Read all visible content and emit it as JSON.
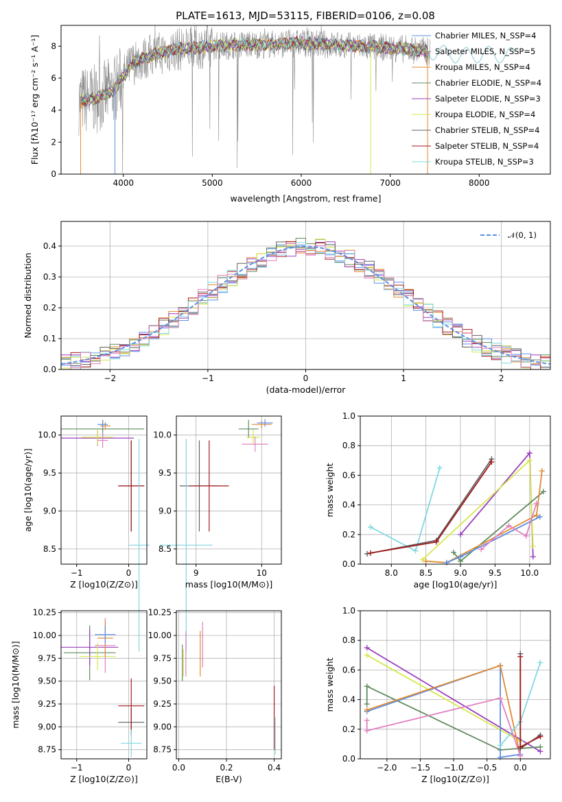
{
  "figure_title": "PLATE=1613, MJD=53115, FIBERID=0106, z=0.08",
  "colors": {
    "chabrier_miles": "#5b8ee6",
    "salpeter_miles": "#7f7f7f",
    "kroupa_miles": "#e08a2e",
    "chabrier_elodie": "#5f8a5f",
    "salpeter_elodie": "#9a3cbc",
    "kroupa_elodie": "#d5e84a",
    "chabrier_stelib": "#606060",
    "salpeter_stelib": "#a31a1a",
    "kroupa_stelib": "#7fd8e0",
    "pink": "#e07fbf"
  },
  "chart_data": [
    {
      "id": "spectrum",
      "type": "line",
      "xlabel": "wavelength [Angstrom, rest frame]",
      "ylabel": "Flux [fλ10⁻¹⁷ erg cm⁻² s⁻¹ A⁻¹]",
      "xlim": [
        3300,
        8800
      ],
      "ylim": [
        0,
        9.3
      ],
      "xticks": [
        "4000",
        "5000",
        "6000",
        "7000",
        "8000"
      ],
      "yticks": [
        "0",
        "2",
        "4",
        "6",
        "8"
      ],
      "legend_position": "upper-right",
      "legend": [
        {
          "name": "Chabrier MILES, N_SSP=4",
          "color": "#5b8ee6"
        },
        {
          "name": "Salpeter MILES, N_SSP=5",
          "color": "#7f7f7f"
        },
        {
          "name": "Kroupa MILES, N_SSP=4",
          "color": "#e08a2e"
        },
        {
          "name": "Chabrier ELODIE, N_SSP=4",
          "color": "#5f8a5f"
        },
        {
          "name": "Salpeter ELODIE, N_SSP=3",
          "color": "#9a3cbc"
        },
        {
          "name": "Kroupa ELODIE, N_SSP=4",
          "color": "#d5e84a"
        },
        {
          "name": "Chabrier STELIB, N_SSP=4",
          "color": "#606060"
        },
        {
          "name": "Salpeter STELIB, N_SSP=4",
          "color": "#a31a1a"
        },
        {
          "name": "Kroupa STELIB, N_SSP=3",
          "color": "#7fd8e0"
        }
      ],
      "continuum_x": [
        3500,
        3700,
        3900,
        4100,
        4300,
        4600,
        5000,
        5300,
        5600,
        6000,
        6300,
        6600,
        7000,
        7400,
        7800,
        8100,
        8400
      ],
      "continuum_y": [
        4.6,
        4.7,
        5.3,
        6.9,
        7.4,
        7.8,
        8.0,
        8.1,
        8.1,
        8.2,
        8.1,
        8.0,
        7.9,
        7.7,
        7.4,
        7.5,
        7.4
      ]
    },
    {
      "id": "residuals",
      "type": "histogram",
      "xlabel": "(data-model)/error",
      "ylabel": "Normed distribution",
      "xlim": [
        -2.5,
        2.5
      ],
      "ylim": [
        0,
        0.48
      ],
      "xticks": [
        "−2",
        "−1",
        "0",
        "1",
        "2"
      ],
      "yticks": [
        "0.0",
        "0.1",
        "0.2",
        "0.3",
        "0.4"
      ],
      "legend": [
        {
          "name": "𝒩(0, 1)",
          "color": "#5b8ee6"
        }
      ],
      "bin_width": 0.1
    },
    {
      "id": "age-vs-Z",
      "type": "errorbar",
      "xlabel": "Z [log10(Z/Z⊙)]",
      "ylabel": "age  [log10(age/yr)]",
      "xlim": [
        -1.3,
        0.35
      ],
      "ylim": [
        8.3,
        10.25
      ],
      "xticks": [
        {
          "v": -1,
          "t": "−1"
        },
        {
          "v": 0,
          "t": "0"
        }
      ],
      "yticks": [
        {
          "v": 8.5,
          "t": "8.5"
        },
        {
          "v": 9.0,
          "t": "9.0"
        },
        {
          "v": 9.5,
          "t": "9.5"
        },
        {
          "v": 10.0,
          "t": "10.0"
        }
      ],
      "points": [
        {
          "x": -0.5,
          "y": 10.08,
          "xe": 0.8,
          "ye": 0.12,
          "color": "#5f8a5f"
        },
        {
          "x": -0.6,
          "y": 9.96,
          "xe": 0.7,
          "ye": 0.1,
          "color": "#9a3cbc"
        },
        {
          "x": -0.6,
          "y": 9.97,
          "xe": 0.3,
          "ye": 0.1,
          "color": "#d5e84a"
        },
        {
          "x": -0.5,
          "y": 9.93,
          "xe": 0.1,
          "ye": 0.1,
          "color": "#e07fbf"
        },
        {
          "x": -0.45,
          "y": 10.12,
          "xe": 0.1,
          "ye": 0.05,
          "color": "#e08a2e"
        },
        {
          "x": -0.5,
          "y": 10.14,
          "xe": 0.1,
          "ye": 0.05,
          "color": "#5b8ee6"
        },
        {
          "x": 0.05,
          "y": 9.33,
          "xe": 0.25,
          "ye": 0.6,
          "color": "#606060"
        },
        {
          "x": 0.05,
          "y": 9.33,
          "xe": 0.25,
          "ye": 0.6,
          "color": "#a31a1a"
        },
        {
          "x": 0.2,
          "y": 8.55,
          "xe": 0.2,
          "ye": 1.4,
          "color": "#7fd8e0"
        }
      ]
    },
    {
      "id": "age-vs-mass",
      "type": "errorbar",
      "xlabel": "mass [log10(M/M⊙)]",
      "ylabel": "",
      "xlim": [
        8.7,
        10.3
      ],
      "ylim": [
        8.3,
        10.25
      ],
      "xticks": [
        {
          "v": 9,
          "t": "9"
        },
        {
          "v": 10,
          "t": "10"
        }
      ],
      "yticks": [
        {
          "v": 8.5,
          "t": "8.5"
        },
        {
          "v": 9.0,
          "t": "9.0"
        },
        {
          "v": 9.5,
          "t": "9.5"
        },
        {
          "v": 10.0,
          "t": "10.0"
        }
      ],
      "points": [
        {
          "x": 9.8,
          "y": 10.08,
          "xe": 0.15,
          "ye": 0.12,
          "color": "#5f8a5f"
        },
        {
          "x": 9.87,
          "y": 9.97,
          "xe": 0.1,
          "ye": 0.1,
          "color": "#d5e84a"
        },
        {
          "x": 9.9,
          "y": 9.88,
          "xe": 0.2,
          "ye": 0.1,
          "color": "#e07fbf"
        },
        {
          "x": 10.0,
          "y": 10.14,
          "xe": 0.15,
          "ye": 0.05,
          "color": "#e08a2e"
        },
        {
          "x": 10.05,
          "y": 10.16,
          "xe": 0.12,
          "ye": 0.05,
          "color": "#5b8ee6"
        },
        {
          "x": 9.05,
          "y": 9.33,
          "xe": 0.3,
          "ye": 0.6,
          "color": "#606060"
        },
        {
          "x": 9.2,
          "y": 9.33,
          "xe": 0.3,
          "ye": 0.6,
          "color": "#a31a1a"
        },
        {
          "x": 8.85,
          "y": 8.55,
          "xe": 0.4,
          "ye": 1.4,
          "color": "#7fd8e0"
        }
      ]
    },
    {
      "id": "weight-vs-age",
      "type": "line",
      "xlabel": "age  [log10(age/yr)]",
      "ylabel": "mass weight",
      "xlim": [
        7.55,
        10.3
      ],
      "ylim": [
        0,
        1.0
      ],
      "xticks": [
        {
          "v": 8.0,
          "t": "8.0"
        },
        {
          "v": 8.5,
          "t": "8.5"
        },
        {
          "v": 9.0,
          "t": "9.0"
        },
        {
          "v": 9.5,
          "t": "9.5"
        },
        {
          "v": 10.0,
          "t": "10.0"
        }
      ],
      "yticks": [
        {
          "v": 0,
          "t": "0.0"
        },
        {
          "v": 0.2,
          "t": "0.2"
        },
        {
          "v": 0.4,
          "t": "0.4"
        },
        {
          "v": 0.6,
          "t": "0.6"
        },
        {
          "v": 0.8,
          "t": "0.8"
        },
        {
          "v": 1.0,
          "t": "1.0"
        }
      ],
      "series": [
        {
          "color": "#7fd8e0",
          "x": [
            7.7,
            8.35,
            8.7
          ],
          "y": [
            0.25,
            0.09,
            0.65
          ]
        },
        {
          "color": "#606060",
          "x": [
            7.65,
            8.65,
            9.45
          ],
          "y": [
            0.07,
            0.16,
            0.71
          ]
        },
        {
          "color": "#a31a1a",
          "x": [
            7.7,
            8.65,
            9.45
          ],
          "y": [
            0.075,
            0.15,
            0.69
          ]
        },
        {
          "color": "#9a3cbc",
          "x": [
            9.0,
            10.0,
            10.05
          ],
          "y": [
            0.2,
            0.75,
            0.05
          ]
        },
        {
          "color": "#d5e84a",
          "x": [
            8.45,
            10.0,
            10.05
          ],
          "y": [
            0.03,
            0.7,
            0.12
          ]
        },
        {
          "color": "#5f8a5f",
          "x": [
            8.9,
            9.0,
            10.2
          ],
          "y": [
            0.08,
            0.02,
            0.49
          ]
        },
        {
          "color": "#e08a2e",
          "x": [
            8.5,
            8.8,
            10.1,
            10.18
          ],
          "y": [
            0.02,
            0.01,
            0.33,
            0.63
          ]
        },
        {
          "color": "#5b8ee6",
          "x": [
            8.8,
            9.0,
            10.15
          ],
          "y": [
            0.01,
            0.05,
            0.32
          ]
        },
        {
          "color": "#e07fbf",
          "x": [
            9.3,
            9.7,
            9.95,
            10.1
          ],
          "y": [
            0.1,
            0.26,
            0.19,
            0.41
          ]
        }
      ]
    },
    {
      "id": "mass-vs-Z",
      "type": "errorbar",
      "xlabel": "Z [log10(Z/Z⊙)]",
      "ylabel": "mass [log10(M/M⊙)]",
      "xlim": [
        -1.3,
        0.35
      ],
      "ylim": [
        8.65,
        10.27
      ],
      "xticks": [
        {
          "v": -1,
          "t": "−1"
        },
        {
          "v": 0,
          "t": "0"
        }
      ],
      "yticks": [
        {
          "v": 8.75,
          "t": "8.75"
        },
        {
          "v": 9.0,
          "t": "9.00"
        },
        {
          "v": 9.25,
          "t": "9.25"
        },
        {
          "v": 9.5,
          "t": "9.50"
        },
        {
          "v": 9.75,
          "t": "9.75"
        },
        {
          "v": 10.0,
          "t": "10.00"
        },
        {
          "v": 10.25,
          "t": "10.25"
        }
      ],
      "points": [
        {
          "x": -0.75,
          "y": 9.81,
          "xe": 0.5,
          "ye": 0.3,
          "color": "#5f8a5f"
        },
        {
          "x": -0.75,
          "y": 9.87,
          "xe": 0.55,
          "ye": 0.2,
          "color": "#9a3cbc"
        },
        {
          "x": -0.6,
          "y": 9.77,
          "xe": 0.35,
          "ye": 0.15,
          "color": "#d5e84a"
        },
        {
          "x": -0.45,
          "y": 9.89,
          "xe": 0.2,
          "ye": 0.3,
          "color": "#e07fbf"
        },
        {
          "x": -0.45,
          "y": 9.97,
          "xe": 0.15,
          "ye": 0.2,
          "color": "#e08a2e"
        },
        {
          "x": -0.45,
          "y": 10.01,
          "xe": 0.2,
          "ye": 0.1,
          "color": "#5b8ee6"
        },
        {
          "x": 0.05,
          "y": 9.05,
          "xe": 0.25,
          "ye": 0.15,
          "color": "#606060"
        },
        {
          "x": 0.05,
          "y": 9.23,
          "xe": 0.25,
          "ye": 0.3,
          "color": "#a31a1a"
        },
        {
          "x": 0.05,
          "y": 8.82,
          "xe": 0.2,
          "ye": 0.15,
          "color": "#7fd8e0"
        }
      ]
    },
    {
      "id": "mass-vs-ebv",
      "type": "errorbar",
      "xlabel": "E(B-V)",
      "ylabel": "",
      "xlim": [
        -0.01,
        0.43
      ],
      "ylim": [
        8.65,
        10.27
      ],
      "xticks": [
        {
          "v": 0,
          "t": "0.0"
        },
        {
          "v": 0.2,
          "t": "0.2"
        },
        {
          "v": 0.4,
          "t": "0.4"
        }
      ],
      "yticks": [
        {
          "v": 8.75,
          "t": "8.75"
        },
        {
          "v": 9.0,
          "t": "9.00"
        },
        {
          "v": 9.25,
          "t": "9.25"
        },
        {
          "v": 9.5,
          "t": "9.50"
        },
        {
          "v": 9.75,
          "t": "9.75"
        },
        {
          "v": 10.0,
          "t": "10.00"
        },
        {
          "v": 10.25,
          "t": "10.25"
        }
      ],
      "points": [
        {
          "x": 0.015,
          "y": 9.7,
          "xe": 0,
          "ye": 0.2,
          "color": "#5f8a5f"
        },
        {
          "x": 0.02,
          "y": 9.7,
          "xe": 0,
          "ye": 0.15,
          "color": "#d5e84a"
        },
        {
          "x": 0.03,
          "y": 9.8,
          "xe": 0,
          "ye": 0.25,
          "color": "#e07fbf"
        },
        {
          "x": 0.09,
          "y": 9.8,
          "xe": 0,
          "ye": 0.25,
          "color": "#e08a2e"
        },
        {
          "x": 0.1,
          "y": 9.9,
          "xe": 0,
          "ye": 0.25,
          "color": "#e07fbf"
        },
        {
          "x": 0.4,
          "y": 9.1,
          "xe": 0,
          "ye": 0.35,
          "color": "#a31a1a"
        },
        {
          "x": 0.405,
          "y": 8.9,
          "xe": 0,
          "ye": 0.2,
          "color": "#7fd8e0"
        }
      ]
    },
    {
      "id": "weight-vs-Z",
      "type": "line",
      "xlabel": "Z [log10(Z/Z⊙)]",
      "ylabel": "mass weight",
      "xlim": [
        -2.4,
        0.45
      ],
      "ylim": [
        0,
        1.0
      ],
      "xticks": [
        {
          "v": -2,
          "t": "−2.0"
        },
        {
          "v": -1.5,
          "t": "−1.5"
        },
        {
          "v": -1,
          "t": "−1.0"
        },
        {
          "v": -0.5,
          "t": "−0.5"
        },
        {
          "v": 0,
          "t": "0.0"
        }
      ],
      "yticks": [
        {
          "v": 0,
          "t": "0.0"
        },
        {
          "v": 0.2,
          "t": "0.2"
        },
        {
          "v": 0.4,
          "t": "0.4"
        },
        {
          "v": 0.6,
          "t": "0.6"
        },
        {
          "v": 0.8,
          "t": "0.8"
        },
        {
          "v": 1.0,
          "t": "1.0"
        }
      ],
      "series": [
        {
          "color": "#9a3cbc",
          "x": [
            -2.3,
            0.3
          ],
          "y": [
            0.75,
            0.05
          ]
        },
        {
          "color": "#d5e84a",
          "x": [
            -2.3,
            0.0
          ],
          "y": [
            0.7,
            0.12
          ]
        },
        {
          "color": "#5f8a5f",
          "x": [
            -2.3,
            -2.3,
            -0.3,
            0.3
          ],
          "y": [
            0.37,
            0.49,
            0.06,
            0.08
          ]
        },
        {
          "color": "#5b8ee6",
          "x": [
            -2.3,
            -0.3,
            -0.3,
            0.0
          ],
          "y": [
            0.32,
            0.63,
            0.01,
            0.03
          ]
        },
        {
          "color": "#e08a2e",
          "x": [
            -2.3,
            -0.3,
            0.0
          ],
          "y": [
            0.33,
            0.63,
            0.02
          ]
        },
        {
          "color": "#e07fbf",
          "x": [
            -2.3,
            -2.3,
            -0.3,
            0.0
          ],
          "y": [
            0.26,
            0.19,
            0.41,
            0.02
          ]
        },
        {
          "color": "#7fd8e0",
          "x": [
            -0.3,
            0.0,
            0.3
          ],
          "y": [
            0.09,
            0.25,
            0.65
          ]
        },
        {
          "color": "#606060",
          "x": [
            0.0,
            0.0,
            0.3
          ],
          "y": [
            0.71,
            0.07,
            0.16
          ]
        },
        {
          "color": "#a31a1a",
          "x": [
            0.0,
            0.0,
            0.3
          ],
          "y": [
            0.69,
            0.08,
            0.15
          ]
        }
      ]
    }
  ]
}
